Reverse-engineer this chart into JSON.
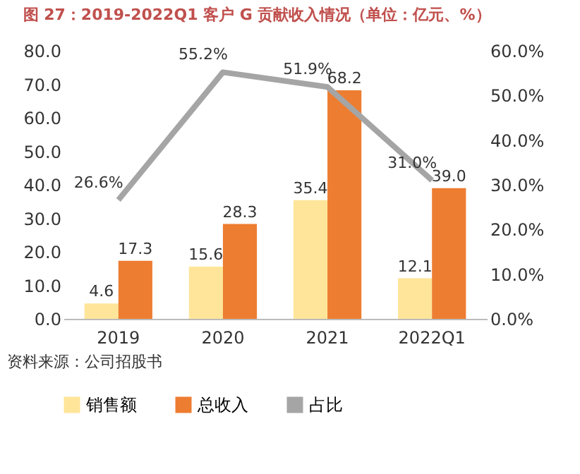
{
  "chart_data": {
    "type": "bar",
    "title": "图 27：2019-2022Q1 客户 G 贡献收入情况（单位：亿元、%）",
    "categories": [
      "2019",
      "2020",
      "2021",
      "2022Q1"
    ],
    "series": [
      {
        "name": "销售额",
        "color": "#fee599",
        "values": [
          4.6,
          15.6,
          35.4,
          12.1
        ],
        "value_labels": [
          "4.6",
          "15.6",
          "35.4",
          "12.1"
        ]
      },
      {
        "name": "总收入",
        "color": "#ed7d31",
        "values": [
          17.3,
          28.3,
          68.2,
          39.0
        ],
        "value_labels": [
          "17.3",
          "28.3",
          "68.2",
          "39.0"
        ]
      },
      {
        "name": "占比",
        "type": "line",
        "axis": "y2",
        "color": "#a5a5a5",
        "values": [
          26.6,
          55.2,
          51.9,
          31.0
        ],
        "value_labels": [
          "26.6%",
          "55.2%",
          "51.9%",
          "31.0%"
        ]
      }
    ],
    "ylim": [
      0,
      80
    ],
    "yticks": [
      {
        "value": 0,
        "label": "0.0"
      },
      {
        "value": 10,
        "label": "10.0"
      },
      {
        "value": 20,
        "label": "20.0"
      },
      {
        "value": 30,
        "label": "30.0"
      },
      {
        "value": 40,
        "label": "40.0"
      },
      {
        "value": 50,
        "label": "50.0"
      },
      {
        "value": 60,
        "label": "60.0"
      },
      {
        "value": 70,
        "label": "70.0"
      },
      {
        "value": 80,
        "label": "80.0"
      }
    ],
    "y2lim": [
      0,
      60
    ],
    "y2ticks": [
      {
        "value": 0,
        "label": "0.0%"
      },
      {
        "value": 10,
        "label": "10.0%"
      },
      {
        "value": 20,
        "label": "20.0%"
      },
      {
        "value": 30,
        "label": "30.0%"
      },
      {
        "value": 40,
        "label": "40.0%"
      },
      {
        "value": 50,
        "label": "50.0%"
      },
      {
        "value": 60,
        "label": "60.0%"
      }
    ],
    "grid": false,
    "legend": "bottom",
    "annotations": [
      "资料来源：公司招股书"
    ]
  }
}
